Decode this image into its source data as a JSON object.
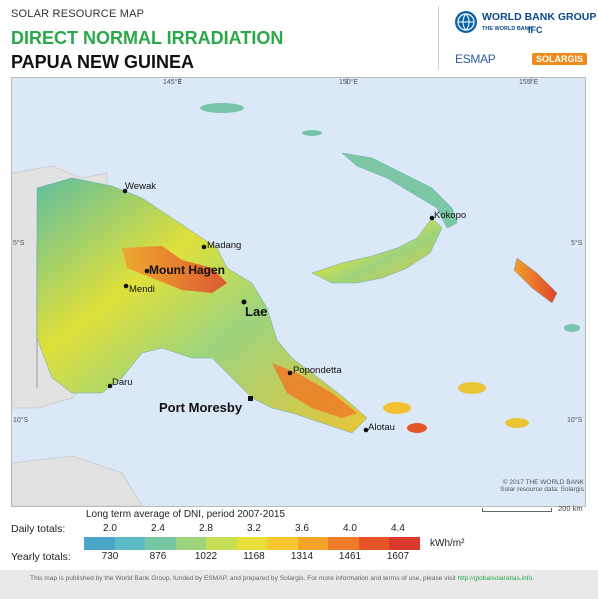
{
  "header": {
    "kicker": "SOLAR RESOURCE MAP",
    "title": "DIRECT NORMAL IRRADIATION",
    "country": "PAPUA NEW GUINEA"
  },
  "logos": {
    "world_bank": "WORLD BANK GROUP",
    "world_bank_sub": "THE WORLD BANK",
    "ifc": "IFC",
    "esmap": "ESMAP",
    "solargis": "SOLARGIS"
  },
  "map": {
    "grid_labels": {
      "lon145": "145°E",
      "lon150": "150°E",
      "lon155": "155°E",
      "lat5_left": "5°S",
      "lat5_right": "5°S",
      "lat10_left": "10°S",
      "lat10_right": "10°S"
    },
    "cities": {
      "wewak": "Wewak",
      "madang": "Madang",
      "mount_hagen": "Mount Hagen",
      "mendi": "Mendi",
      "lae": "Lae",
      "kokopo": "Kokopo",
      "popondetta": "Popondetta",
      "port_moresby": "Port Moresby",
      "daru": "Daru",
      "alotau": "Alotau"
    },
    "credit_line1": "© 2017 THE WORLD BANK",
    "credit_line2": "Solar resource data: Solargis",
    "scale": "200 km",
    "colors": {
      "sea": "#dbe8f8",
      "land_low": "#4bb7c8",
      "land_mid": "#f2e530",
      "land_high": "#e8482a"
    }
  },
  "legend": {
    "title": "Long term average of DNI, period 2007-2015",
    "daily_label": "Daily totals:",
    "yearly_label": "Yearly totals:",
    "daily_values": [
      "2.0",
      "2.4",
      "2.8",
      "3.2",
      "3.6",
      "4.0",
      "4.4"
    ],
    "yearly_values": [
      "730",
      "876",
      "1022",
      "1168",
      "1314",
      "1461",
      "1607"
    ],
    "unit": "kWh/m²",
    "colors": [
      "#4aa6c9",
      "#5cbac2",
      "#76c7a2",
      "#9dd47e",
      "#c6df55",
      "#eadf3a",
      "#f6c72e",
      "#f5a42a",
      "#ee7b27",
      "#e65528",
      "#d93a2c"
    ]
  },
  "footer": {
    "text": "This map is published by the World Bank Group, funded by ESMAP, and prepared by Solargis. For more information and terms of use, please visit ",
    "link": "http://globalsolaratlas.info",
    "end": "."
  }
}
